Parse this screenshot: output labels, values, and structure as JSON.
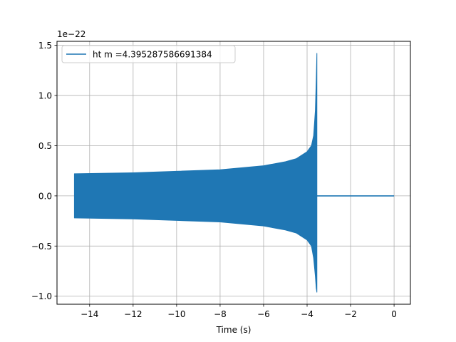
{
  "chart_data": {
    "type": "line",
    "title": "",
    "xlabel": "Time (s)",
    "ylabel": "",
    "y_offset_label": "1e−22",
    "xlim": [
      -15.5,
      0.75
    ],
    "ylim": [
      -1.08,
      1.54
    ],
    "y_scale_factor": "1e-22",
    "grid": true,
    "legend_placement": "upper-left",
    "x_ticks": [
      -14,
      -12,
      -10,
      -8,
      -6,
      -4,
      -2,
      0
    ],
    "x_tick_labels": [
      "−14",
      "−12",
      "−10",
      "−8",
      "−6",
      "−4",
      "−2",
      "0"
    ],
    "y_ticks": [
      -1.0,
      -0.5,
      0.0,
      0.5,
      1.0,
      1.5
    ],
    "y_tick_labels": [
      "−1.0",
      "−0.5",
      "0.0",
      "0.5",
      "1.0",
      "1.5"
    ],
    "series": [
      {
        "name": "ht m =4.395287586691384",
        "color": "#1f77b4",
        "signal_start": -14.7,
        "merger_time": -3.55,
        "signal_end": 0.0,
        "envelope_upper": {
          "x": [
            -14.7,
            -12,
            -10,
            -8,
            -6,
            -5,
            -4.5,
            -4,
            -3.8,
            -3.7,
            -3.62,
            -3.58,
            -3.55
          ],
          "y": [
            0.22,
            0.23,
            0.245,
            0.26,
            0.3,
            0.34,
            0.37,
            0.44,
            0.5,
            0.6,
            0.85,
            1.15,
            1.42
          ]
        },
        "envelope_lower": {
          "x": [
            -14.7,
            -12,
            -10,
            -8,
            -6,
            -5,
            -4.5,
            -4,
            -3.8,
            -3.7,
            -3.62,
            -3.58,
            -3.55
          ],
          "y": [
            -0.22,
            -0.23,
            -0.245,
            -0.26,
            -0.3,
            -0.34,
            -0.37,
            -0.44,
            -0.5,
            -0.62,
            -0.8,
            -0.92,
            -0.96
          ]
        }
      }
    ]
  }
}
